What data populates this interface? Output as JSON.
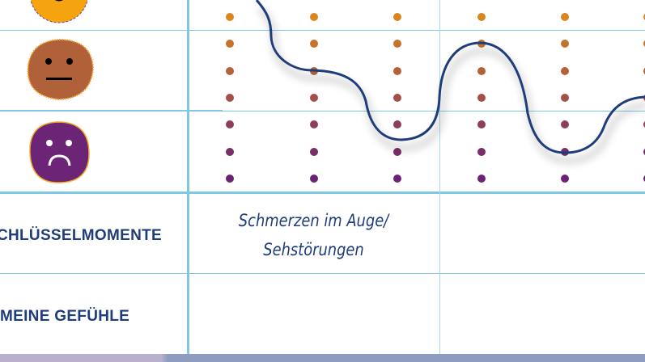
{
  "rows": {
    "key_moments_label": "SCHLÜSSELMOMENTE",
    "feelings_label": "MEINE GEFÜHLE"
  },
  "notes": {
    "col1_line1": "Schmerzen im Auge/",
    "col1_line2": "Sehstörungen"
  },
  "mood_icons": [
    "happy-sun-face",
    "neutral-face",
    "sad-face"
  ],
  "dot_colors": [
    "#d9861f",
    "#c5722a",
    "#b3623c",
    "#a4504a",
    "#8e3d5d",
    "#7b2d6c",
    "#6b2276"
  ],
  "curve_color": "#1f3d7a",
  "grid_color": "#7ec8e3"
}
